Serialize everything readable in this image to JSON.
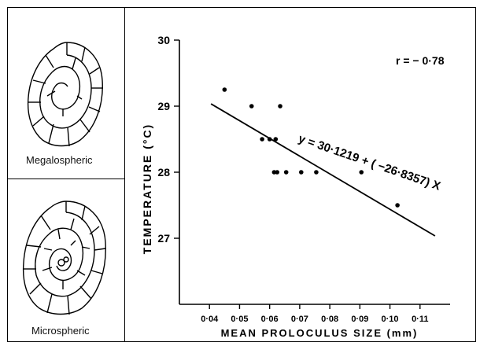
{
  "panels": {
    "megalospheric_label": "Megalospheric",
    "microspheric_label": "Microspheric"
  },
  "chart_data": {
    "type": "scatter",
    "title": "",
    "xlabel": "MEAN PROLOCULUS SIZE (mm)",
    "ylabel": "TEMPERATURE (°C)",
    "xlim": [
      0.03,
      0.12
    ],
    "ylim": [
      26,
      30
    ],
    "x_ticks": [
      0.04,
      0.05,
      0.06,
      0.07,
      0.08,
      0.09,
      0.1,
      0.11
    ],
    "x_tick_labels": [
      "0·04",
      "0·05",
      "0·06",
      "0·07",
      "0·08",
      "0·09",
      "0·10",
      "0·11"
    ],
    "y_ticks": [
      27,
      28,
      29,
      30
    ],
    "y_tick_labels": [
      "27",
      "28",
      "29",
      "30"
    ],
    "grid": false,
    "points": [
      {
        "x": 0.045,
        "y": 29.25
      },
      {
        "x": 0.054,
        "y": 29.0
      },
      {
        "x": 0.0575,
        "y": 28.5
      },
      {
        "x": 0.06,
        "y": 28.5
      },
      {
        "x": 0.062,
        "y": 28.5
      },
      {
        "x": 0.0615,
        "y": 28.0
      },
      {
        "x": 0.0625,
        "y": 28.0
      },
      {
        "x": 0.0635,
        "y": 29.0
      },
      {
        "x": 0.0655,
        "y": 28.0
      },
      {
        "x": 0.0705,
        "y": 28.0
      },
      {
        "x": 0.0755,
        "y": 28.0
      },
      {
        "x": 0.0905,
        "y": 28.0
      },
      {
        "x": 0.1025,
        "y": 27.5
      }
    ],
    "regression": {
      "x_range": [
        0.0405,
        0.115
      ],
      "intercept": 30.1219,
      "slope": -26.8357,
      "equation_label": "y = 30·1219 + ( −26·8357) X"
    },
    "annotations": {
      "r_label": "r = − 0·78"
    }
  }
}
